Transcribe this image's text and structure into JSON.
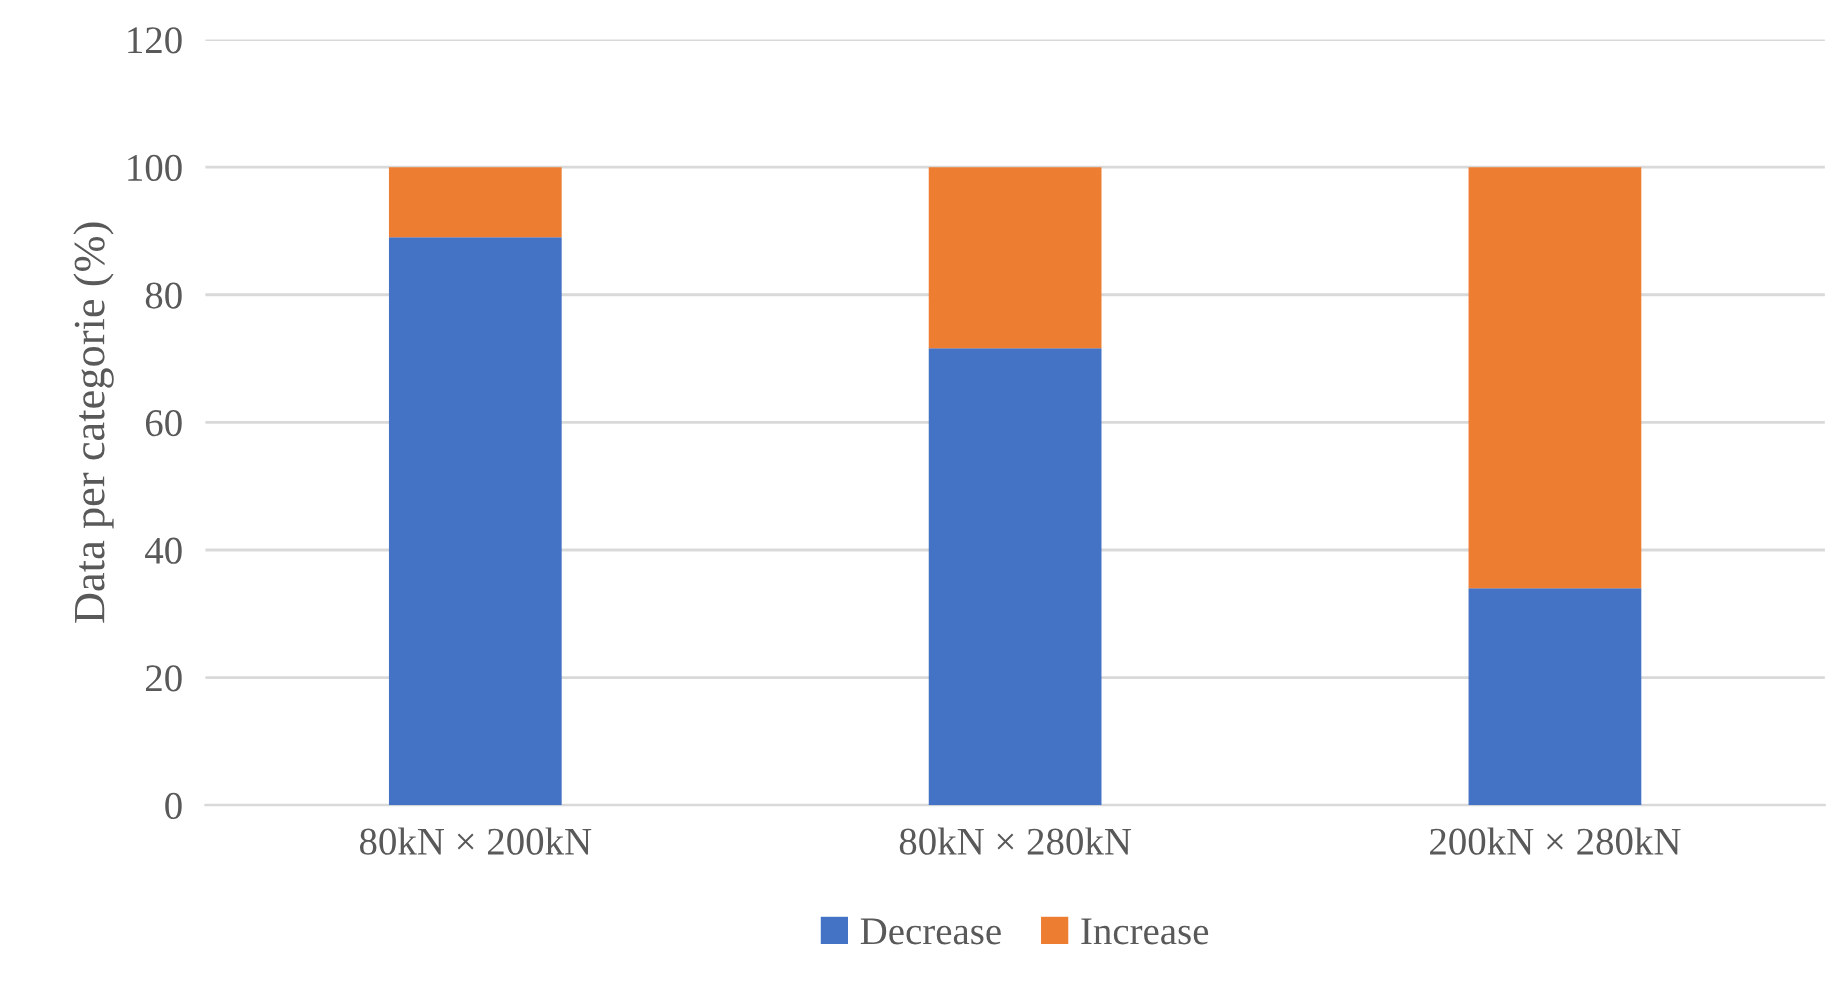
{
  "chart_data": {
    "type": "bar",
    "stacked": true,
    "ylabel": "Data per categorie (%)",
    "categories": [
      "80kN × 200kN",
      "80kN × 280kN",
      "200kN × 280kN"
    ],
    "series": [
      {
        "name": "Decrease",
        "color": "#4472c4",
        "values": [
          89,
          71.6,
          34
        ]
      },
      {
        "name": "Increase",
        "color": "#ed7d31",
        "values": [
          11,
          28.4,
          66
        ]
      }
    ],
    "ylim": [
      0,
      120
    ],
    "yticks": [
      0,
      20,
      40,
      60,
      80,
      100,
      120
    ],
    "grid": "y",
    "legend": "bottom"
  }
}
